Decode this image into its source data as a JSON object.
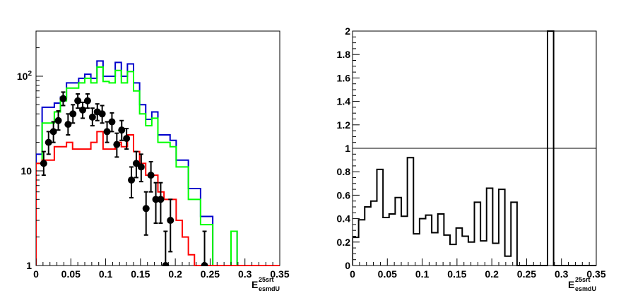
{
  "chart_data": [
    {
      "type": "line",
      "yscale": "log",
      "xlim": [
        0,
        0.35
      ],
      "ylim": [
        1,
        300
      ],
      "xticks": [
        "0",
        "0.05",
        "0.1",
        "0.15",
        "0.2",
        "0.25",
        "0.3",
        "0.35"
      ],
      "yticks": [
        "1",
        "10",
        "10^2"
      ],
      "xlabel": {
        "main": "E",
        "sup": "25srt",
        "sub": "esmdU"
      },
      "bin_width": 0.00875,
      "series": [
        {
          "style": "step",
          "color": "#0000cc",
          "values": [
            15,
            47,
            47,
            52,
            60,
            85,
            85,
            95,
            105,
            95,
            145,
            100,
            100,
            140,
            100,
            135,
            85,
            50,
            35,
            42,
            24,
            24,
            21,
            13,
            13,
            6.5,
            6.5,
            3.3,
            3.3,
            1,
            1,
            1,
            2.3,
            1,
            1,
            1,
            1,
            1,
            1,
            1
          ]
        },
        {
          "style": "step",
          "color": "#00ff00",
          "values": [
            12,
            32,
            32,
            42,
            55,
            75,
            75,
            85,
            95,
            85,
            125,
            88,
            85,
            115,
            85,
            112,
            70,
            40,
            30,
            36,
            20,
            20,
            18,
            11,
            11,
            5,
            5,
            2.7,
            2.7,
            1,
            1,
            1,
            2.3,
            1,
            1,
            1,
            1,
            1,
            1,
            1
          ]
        },
        {
          "style": "step",
          "color": "#ff0000",
          "values": [
            12,
            13,
            13,
            18,
            18,
            20,
            17,
            17,
            17,
            20,
            26,
            17,
            17,
            20,
            18,
            24,
            16,
            12,
            9,
            9,
            6,
            5,
            5,
            3,
            2,
            1.3,
            1,
            1,
            1,
            1,
            1,
            1,
            1,
            1,
            1,
            1,
            1,
            1,
            1,
            1
          ]
        },
        {
          "style": "points",
          "color": "#000000",
          "points": [
            {
              "x": 0.011,
              "y": 12,
              "err": [
                9,
                16
              ]
            },
            {
              "x": 0.018,
              "y": 20,
              "err": [
                15,
                26
              ]
            },
            {
              "x": 0.025,
              "y": 26,
              "err": [
                20,
                33
              ]
            },
            {
              "x": 0.032,
              "y": 34,
              "err": [
                27,
                43
              ]
            },
            {
              "x": 0.039,
              "y": 58,
              "err": [
                49,
                68
              ]
            },
            {
              "x": 0.046,
              "y": 31,
              "err": [
                24,
                40
              ]
            },
            {
              "x": 0.053,
              "y": 40,
              "err": [
                32,
                50
              ]
            },
            {
              "x": 0.06,
              "y": 55,
              "err": [
                46,
                65
              ]
            },
            {
              "x": 0.067,
              "y": 44,
              "err": [
                36,
                53
              ]
            },
            {
              "x": 0.074,
              "y": 55,
              "err": [
                46,
                65
              ]
            },
            {
              "x": 0.081,
              "y": 37,
              "err": [
                30,
                46
              ]
            },
            {
              "x": 0.088,
              "y": 42,
              "err": [
                34,
                51
              ]
            },
            {
              "x": 0.095,
              "y": 40,
              "err": [
                32,
                49
              ]
            },
            {
              "x": 0.102,
              "y": 26,
              "err": [
                20,
                33
              ]
            },
            {
              "x": 0.109,
              "y": 33,
              "err": [
                26,
                41
              ]
            },
            {
              "x": 0.116,
              "y": 19,
              "err": [
                14,
                25
              ]
            },
            {
              "x": 0.123,
              "y": 27,
              "err": [
                21,
                34
              ]
            },
            {
              "x": 0.13,
              "y": 22,
              "err": [
                17,
                28
              ]
            },
            {
              "x": 0.137,
              "y": 8,
              "err": [
                5.2,
                11
              ]
            },
            {
              "x": 0.144,
              "y": 12,
              "err": [
                8.5,
                16
              ]
            },
            {
              "x": 0.151,
              "y": 11,
              "err": [
                7.7,
                15
              ]
            },
            {
              "x": 0.158,
              "y": 4,
              "err": [
                2.1,
                6
              ]
            },
            {
              "x": 0.165,
              "y": 9,
              "err": [
                6,
                12.5
              ]
            },
            {
              "x": 0.172,
              "y": 5,
              "err": [
                2.8,
                7.5
              ]
            },
            {
              "x": 0.179,
              "y": 5,
              "err": [
                2.8,
                7.5
              ]
            },
            {
              "x": 0.186,
              "y": 1,
              "err": [
                1,
                2.3
              ]
            },
            {
              "x": 0.193,
              "y": 3,
              "err": [
                1.4,
                5
              ]
            },
            {
              "x": 0.242,
              "y": 1,
              "err": [
                1,
                2.3
              ]
            }
          ]
        }
      ]
    },
    {
      "type": "line",
      "xlim": [
        0,
        0.35
      ],
      "ylim": [
        0,
        2
      ],
      "xticks": [
        "0",
        "0.05",
        "0.1",
        "0.15",
        "0.2",
        "0.25",
        "0.3",
        "0.35"
      ],
      "yticks": [
        "0",
        "0.2",
        "0.4",
        "0.6",
        "0.8",
        "1",
        "1.2",
        "1.4",
        "1.6",
        "1.8",
        "2"
      ],
      "xlabel": {
        "main": "E",
        "sup": "25srt",
        "sub": "esmdU"
      },
      "reference_line": 1,
      "bin_width": 0.00875,
      "series": [
        {
          "style": "step",
          "color": "#000000",
          "values": [
            0.24,
            0.39,
            0.5,
            0.55,
            0.82,
            0.41,
            0.44,
            0.58,
            0.42,
            0.92,
            0.27,
            0.4,
            0.43,
            0.28,
            0.44,
            0.26,
            0.18,
            0.32,
            0.25,
            0.2,
            0.54,
            0.21,
            0.66,
            0.19,
            0.65,
            0.08,
            0.54,
            0,
            0,
            0,
            0,
            0,
            2,
            0,
            0,
            0,
            0,
            0,
            0,
            0
          ]
        }
      ]
    }
  ]
}
